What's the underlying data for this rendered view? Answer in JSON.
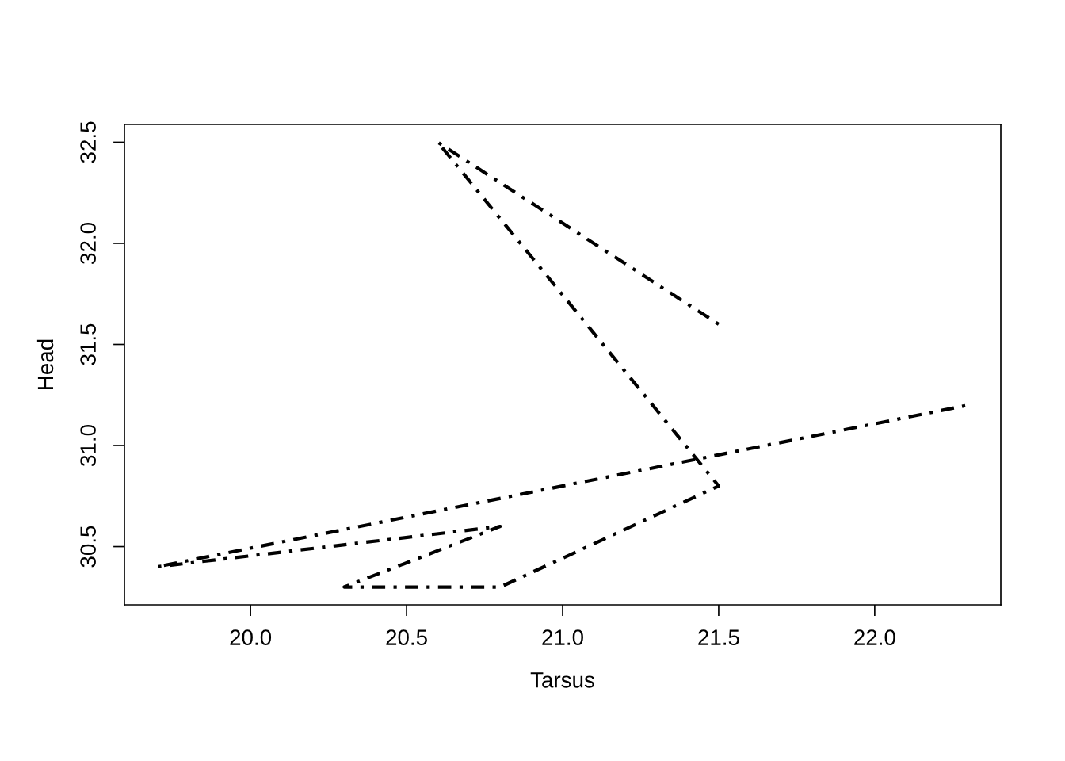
{
  "chart_data": {
    "type": "line",
    "xlabel": "Tarsus",
    "ylabel": "Head",
    "series": [
      {
        "color": "#000000",
        "x": [
          21.5,
          20.6,
          21.5,
          20.8,
          20.3,
          20.8,
          19.7,
          22.3
        ],
        "values": [
          31.6,
          32.5,
          30.8,
          30.3,
          30.3,
          30.6,
          30.4,
          31.2
        ]
      }
    ],
    "xlim": [
      19.596,
      22.404
    ],
    "ylim": [
      30.212,
      32.588
    ],
    "xticks": [
      {
        "value": 20.0,
        "label": "20.0"
      },
      {
        "value": 20.5,
        "label": "20.5"
      },
      {
        "value": 21.0,
        "label": "21.0"
      },
      {
        "value": 21.5,
        "label": "21.5"
      },
      {
        "value": 22.0,
        "label": "22.0"
      }
    ],
    "yticks": [
      {
        "value": 30.5,
        "label": "30.5"
      },
      {
        "value": 31.0,
        "label": "31.0"
      },
      {
        "value": 31.5,
        "label": "31.5"
      },
      {
        "value": 32.0,
        "label": "32.0"
      },
      {
        "value": 32.5,
        "label": "32.5"
      }
    ],
    "grid": false,
    "legend": false,
    "marker": "none",
    "line_style": "dashdot"
  }
}
